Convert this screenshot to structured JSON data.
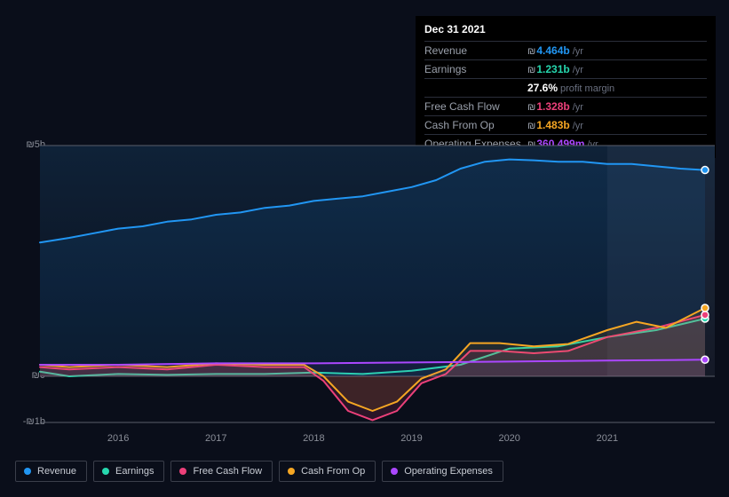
{
  "panel": {
    "title": "Dec 31 2021",
    "currency": "₪",
    "rows": [
      {
        "label": "Revenue",
        "value": "4.464b",
        "unit": "/yr",
        "color": "#2196f3"
      },
      {
        "label": "Earnings",
        "value": "1.231b",
        "unit": "/yr",
        "color": "#26d7ae"
      },
      {
        "label": "",
        "value": "27.6%",
        "sub": "profit margin",
        "color": "#ffffff"
      },
      {
        "label": "Free Cash Flow",
        "value": "1.328b",
        "unit": "/yr",
        "color": "#ec407a"
      },
      {
        "label": "Cash From Op",
        "value": "1.483b",
        "unit": "/yr",
        "color": "#f5a623"
      },
      {
        "label": "Operating Expenses",
        "value": "360.499m",
        "unit": "/yr",
        "color": "#ab47ff"
      }
    ]
  },
  "chart": {
    "type": "area",
    "background": "#0a0e1a",
    "plot_gradient_top": "#0f2238",
    "plot_gradient_bottom": "#0a0e1a",
    "forecast_fill": "#5a6578",
    "forecast_opacity": 0.14,
    "grid_color": "#2a2e3a",
    "axis_color": "#5a5e6a",
    "marker_stroke": "#ffffff",
    "xlim": [
      2015.2,
      2022.1
    ],
    "ylim": [
      -1,
      5
    ],
    "y_zero": 0,
    "y_ticks": [
      {
        "v": 5,
        "label": "₪5b"
      },
      {
        "v": 0,
        "label": "₪0"
      },
      {
        "v": -1,
        "label": "-₪1b"
      }
    ],
    "x_ticks": [
      2016,
      2017,
      2018,
      2019,
      2020,
      2021
    ],
    "forecast_start": 2021,
    "hover_x": 2021.96,
    "series": [
      {
        "name": "Revenue",
        "color": "#2196f3",
        "fill_opacity": 0.1,
        "points": [
          [
            2015.2,
            2.9
          ],
          [
            2015.5,
            3.0
          ],
          [
            2015.75,
            3.1
          ],
          [
            2016.0,
            3.2
          ],
          [
            2016.25,
            3.25
          ],
          [
            2016.5,
            3.35
          ],
          [
            2016.75,
            3.4
          ],
          [
            2017.0,
            3.5
          ],
          [
            2017.25,
            3.55
          ],
          [
            2017.5,
            3.65
          ],
          [
            2017.75,
            3.7
          ],
          [
            2018.0,
            3.8
          ],
          [
            2018.25,
            3.85
          ],
          [
            2018.5,
            3.9
          ],
          [
            2018.75,
            4.0
          ],
          [
            2019.0,
            4.1
          ],
          [
            2019.25,
            4.25
          ],
          [
            2019.5,
            4.5
          ],
          [
            2019.75,
            4.65
          ],
          [
            2020.0,
            4.7
          ],
          [
            2020.25,
            4.68
          ],
          [
            2020.5,
            4.65
          ],
          [
            2020.75,
            4.65
          ],
          [
            2021.0,
            4.6
          ],
          [
            2021.25,
            4.6
          ],
          [
            2021.5,
            4.55
          ],
          [
            2021.75,
            4.5
          ],
          [
            2022.0,
            4.47
          ]
        ]
      },
      {
        "name": "Earnings",
        "color": "#26d7ae",
        "fill_opacity": 0.06,
        "points": [
          [
            2015.2,
            0.1
          ],
          [
            2015.5,
            0.0
          ],
          [
            2016.0,
            0.05
          ],
          [
            2016.5,
            0.03
          ],
          [
            2017.0,
            0.05
          ],
          [
            2017.5,
            0.05
          ],
          [
            2018.0,
            0.08
          ],
          [
            2018.5,
            0.05
          ],
          [
            2019.0,
            0.12
          ],
          [
            2019.5,
            0.25
          ],
          [
            2020.0,
            0.6
          ],
          [
            2020.5,
            0.65
          ],
          [
            2021.0,
            0.85
          ],
          [
            2021.5,
            1.0
          ],
          [
            2022.0,
            1.25
          ]
        ]
      },
      {
        "name": "Free Cash Flow",
        "color": "#ec407a",
        "fill_opacity": 0.14,
        "points": [
          [
            2015.2,
            0.2
          ],
          [
            2015.5,
            0.15
          ],
          [
            2016.0,
            0.2
          ],
          [
            2016.5,
            0.15
          ],
          [
            2017.0,
            0.25
          ],
          [
            2017.5,
            0.2
          ],
          [
            2017.9,
            0.2
          ],
          [
            2018.1,
            -0.1
          ],
          [
            2018.35,
            -0.75
          ],
          [
            2018.6,
            -0.95
          ],
          [
            2018.85,
            -0.75
          ],
          [
            2019.1,
            -0.15
          ],
          [
            2019.35,
            0.05
          ],
          [
            2019.6,
            0.55
          ],
          [
            2019.9,
            0.55
          ],
          [
            2020.25,
            0.5
          ],
          [
            2020.6,
            0.55
          ],
          [
            2021.0,
            0.85
          ],
          [
            2021.5,
            1.05
          ],
          [
            2022.0,
            1.33
          ]
        ]
      },
      {
        "name": "Cash From Op",
        "color": "#f5a623",
        "fill_opacity": 0.1,
        "points": [
          [
            2015.2,
            0.25
          ],
          [
            2015.5,
            0.2
          ],
          [
            2016.0,
            0.25
          ],
          [
            2016.5,
            0.2
          ],
          [
            2017.0,
            0.28
          ],
          [
            2017.5,
            0.25
          ],
          [
            2017.9,
            0.25
          ],
          [
            2018.1,
            0.0
          ],
          [
            2018.35,
            -0.55
          ],
          [
            2018.6,
            -0.75
          ],
          [
            2018.85,
            -0.55
          ],
          [
            2019.1,
            -0.05
          ],
          [
            2019.35,
            0.15
          ],
          [
            2019.6,
            0.72
          ],
          [
            2019.9,
            0.72
          ],
          [
            2020.25,
            0.65
          ],
          [
            2020.6,
            0.7
          ],
          [
            2021.0,
            1.0
          ],
          [
            2021.3,
            1.18
          ],
          [
            2021.6,
            1.05
          ],
          [
            2022.0,
            1.48
          ]
        ]
      },
      {
        "name": "Operating Expenses",
        "color": "#ab47ff",
        "fill_opacity": 0.06,
        "points": [
          [
            2015.2,
            0.25
          ],
          [
            2016.0,
            0.25
          ],
          [
            2017.0,
            0.28
          ],
          [
            2018.0,
            0.28
          ],
          [
            2019.0,
            0.3
          ],
          [
            2020.0,
            0.32
          ],
          [
            2021.0,
            0.34
          ],
          [
            2022.0,
            0.36
          ]
        ]
      }
    ],
    "legend": [
      {
        "label": "Revenue",
        "color": "#2196f3"
      },
      {
        "label": "Earnings",
        "color": "#26d7ae"
      },
      {
        "label": "Free Cash Flow",
        "color": "#ec407a"
      },
      {
        "label": "Cash From Op",
        "color": "#f5a623"
      },
      {
        "label": "Operating Expenses",
        "color": "#ab47ff"
      }
    ]
  },
  "label_fontsize": 11
}
